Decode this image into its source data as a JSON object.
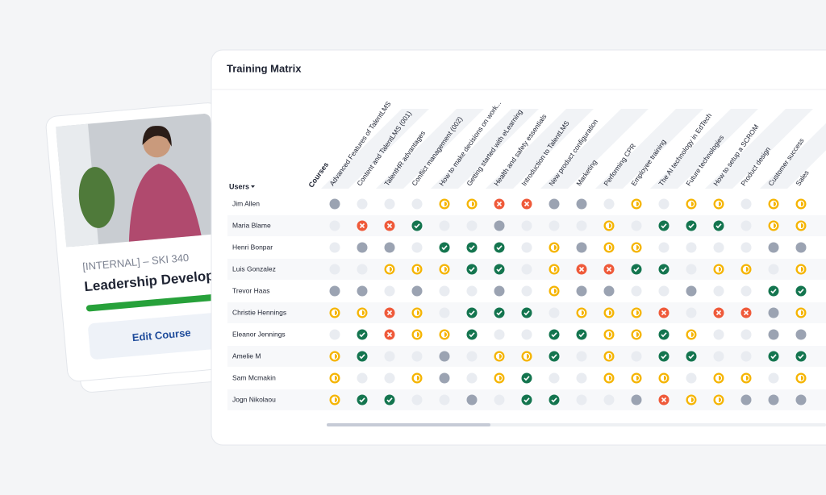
{
  "card": {
    "code": "[INTERNAL] – SKI 340",
    "title": "Leadership Developme",
    "button": "Edit Course"
  },
  "panel": {
    "title": "Training Matrix",
    "courses_label": "Courses",
    "users_label": "Users"
  },
  "matrix": {
    "courses": [
      "Advanced Features of TalentLMS",
      "Content and TalentLMS (001)",
      "TalentHR advantages",
      "Conflict management (002)",
      "How to make decisions on work...",
      "Getting started with eLearning",
      "Health and safety essentials",
      "Introduction to TalentLMS",
      "New product configuration",
      "Marketing",
      "Performing CPR",
      "Employee training",
      "The AI technology in EdTech",
      "Future technologies",
      "How to setup a SCROM",
      "Product design",
      "Customer success",
      "Sales"
    ],
    "rows": [
      {
        "user": "Jim Allen",
        "status": [
          "g",
          "l",
          "l",
          "l",
          "y",
          "y",
          "r",
          "r",
          "g",
          "g",
          "l",
          "y",
          "l",
          "y",
          "y",
          "l",
          "y",
          "y"
        ]
      },
      {
        "user": "Maria Blame",
        "status": [
          "l",
          "r",
          "r",
          "c",
          "l",
          "l",
          "g",
          "l",
          "l",
          "l",
          "y",
          "l",
          "c",
          "c",
          "c",
          "l",
          "y",
          "y"
        ]
      },
      {
        "user": "Henri Bonpar",
        "status": [
          "l",
          "g",
          "g",
          "l",
          "c",
          "c",
          "c",
          "l",
          "y",
          "g",
          "y",
          "y",
          "l",
          "l",
          "l",
          "l",
          "g",
          "g"
        ]
      },
      {
        "user": "Luis Gonzalez",
        "status": [
          "l",
          "l",
          "y",
          "y",
          "y",
          "c",
          "c",
          "l",
          "y",
          "r",
          "r",
          "c",
          "c",
          "l",
          "y",
          "y",
          "l",
          "y"
        ]
      },
      {
        "user": "Trevor Haas",
        "status": [
          "g",
          "g",
          "l",
          "g",
          "l",
          "l",
          "g",
          "l",
          "y",
          "g",
          "g",
          "l",
          "l",
          "g",
          "l",
          "l",
          "c",
          "c"
        ]
      },
      {
        "user": "Christie Hennings",
        "status": [
          "y",
          "y",
          "r",
          "y",
          "l",
          "c",
          "c",
          "c",
          "l",
          "y",
          "y",
          "y",
          "r",
          "l",
          "r",
          "r",
          "g",
          "y"
        ]
      },
      {
        "user": "Eleanor Jennings",
        "status": [
          "l",
          "c",
          "r",
          "y",
          "y",
          "c",
          "l",
          "l",
          "c",
          "c",
          "y",
          "y",
          "c",
          "y",
          "l",
          "l",
          "g",
          "g"
        ]
      },
      {
        "user": "Amelie M",
        "status": [
          "y",
          "c",
          "l",
          "l",
          "g",
          "l",
          "y",
          "y",
          "c",
          "l",
          "y",
          "l",
          "c",
          "c",
          "l",
          "l",
          "c",
          "c"
        ]
      },
      {
        "user": "Sam Mcmakin",
        "status": [
          "y",
          "l",
          "l",
          "y",
          "g",
          "l",
          "y",
          "c",
          "l",
          "l",
          "y",
          "y",
          "y",
          "l",
          "y",
          "y",
          "l",
          "y"
        ]
      },
      {
        "user": "Jogn Nikolaou",
        "status": [
          "y",
          "c",
          "c",
          "l",
          "l",
          "g",
          "l",
          "c",
          "c",
          "l",
          "l",
          "g",
          "r",
          "y",
          "y",
          "g",
          "g",
          "g"
        ]
      }
    ]
  }
}
